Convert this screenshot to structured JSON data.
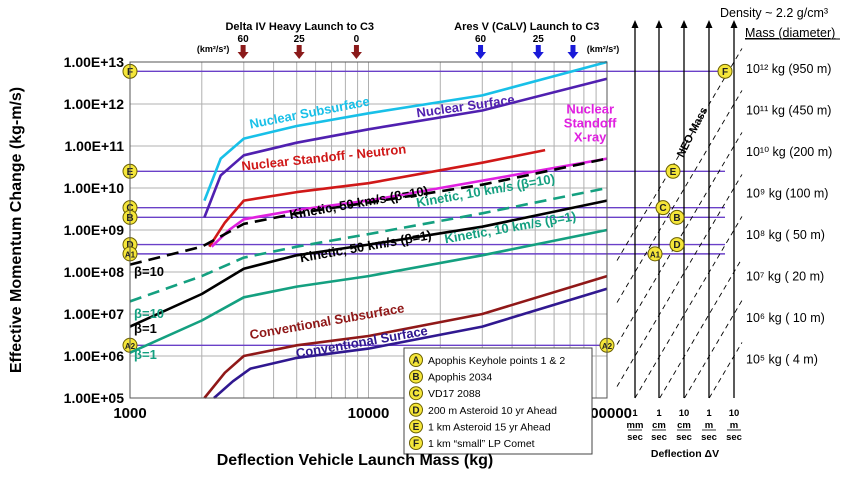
{
  "chart_data": {
    "type": "line",
    "x_scale": "log",
    "y_scale": "log",
    "xlim": [
      1000,
      100000
    ],
    "ylim": [
      100000,
      10000000000000
    ],
    "xlabel": "Deflection Vehicle Launch Mass (kg)",
    "ylabel": "Effective Momentum Change (kg-m/s)",
    "x_ticks": [
      {
        "value": 1000,
        "label": "1000"
      },
      {
        "value": 10000,
        "label": "10000"
      },
      {
        "value": 100000,
        "label": "100000"
      }
    ],
    "y_ticks": [
      {
        "value": 10000000000000,
        "label": "1.00E+13"
      },
      {
        "value": 1000000000000,
        "label": "1.00E+12"
      },
      {
        "value": 100000000000,
        "label": "1.00E+11"
      },
      {
        "value": 10000000000,
        "label": "1.00E+10"
      },
      {
        "value": 1000000000,
        "label": "1.00E+09"
      },
      {
        "value": 100000000,
        "label": "1.00E+08"
      },
      {
        "value": 10000000,
        "label": "1.00E+07"
      },
      {
        "value": 1000000,
        "label": "1.00E+06"
      },
      {
        "value": 100000,
        "label": "1.00E+05"
      }
    ],
    "grid": true,
    "series": [
      {
        "name": "Nuclear Subsurface",
        "color": "#18c0e8",
        "style": "solid",
        "x": [
          2050,
          2400,
          3000,
          5000,
          10000,
          30000,
          100000
        ],
        "y": [
          5000000000.0,
          50000000000.0,
          150000000000.0,
          300000000000.0,
          600000000000.0,
          1600000000000.0,
          10000000000000.0
        ]
      },
      {
        "name": "Nuclear Surface",
        "color": "#5020b0",
        "style": "solid",
        "x": [
          2050,
          2400,
          3000,
          5000,
          10000,
          30000,
          100000
        ],
        "y": [
          2000000000.0,
          20000000000.0,
          60000000000.0,
          120000000000.0,
          250000000000.0,
          700000000000.0,
          4000000000000.0
        ]
      },
      {
        "name": "Nuclear Standoff - Neutron",
        "color": "#d01818",
        "style": "solid",
        "x": [
          2150,
          2500,
          3000,
          5000,
          10000,
          30000,
          55000
        ],
        "y": [
          400000000.0,
          1500000000.0,
          5000000000.0,
          8000000000.0,
          13000000000.0,
          40000000000.0,
          80000000000.0
        ]
      },
      {
        "name": "Nuclear Standoff X-ray",
        "color": "#e020e0",
        "style": "solid",
        "x": [
          2200,
          2600,
          3000,
          5000,
          10000,
          30000,
          100000
        ],
        "y": [
          400000000.0,
          1000000000.0,
          1800000000.0,
          3000000000.0,
          5000000000.0,
          15000000000.0,
          50000000000.0
        ]
      },
      {
        "name": "Kinetic, 50 km/s (β=10)",
        "color": "#000000",
        "style": "dashed",
        "x": [
          1000,
          2000,
          3000,
          5000,
          10000,
          30000,
          100000
        ],
        "y": [
          150000000.0,
          400000000.0,
          1400000000.0,
          2500000000.0,
          4500000000.0,
          12000000000.0,
          50000000000.0
        ]
      },
      {
        "name": "Kinetic, 10 km/s (β=10)",
        "color": "#14a080",
        "style": "dashed",
        "x": [
          1000,
          2000,
          3000,
          5000,
          10000,
          30000,
          100000
        ],
        "y": [
          20000000.0,
          80000000.0,
          220000000.0,
          400000000.0,
          800000000.0,
          2500000000.0,
          10000000000.0
        ]
      },
      {
        "name": "Kinetic, 50 km/s (β=1)",
        "color": "#000000",
        "style": "solid",
        "x": [
          1000,
          2000,
          3000,
          5000,
          10000,
          30000,
          100000
        ],
        "y": [
          5000000.0,
          30000000.0,
          120000000.0,
          250000000.0,
          450000000.0,
          1200000000.0,
          5000000000.0
        ]
      },
      {
        "name": "Kinetic, 10 km/s (β=1)",
        "color": "#14a080",
        "style": "solid",
        "x": [
          1000,
          2000,
          3000,
          5000,
          10000,
          30000,
          100000
        ],
        "y": [
          1200000.0,
          7000000.0,
          25000000.0,
          45000000.0,
          80000000.0,
          250000000.0,
          1000000000.0
        ]
      },
      {
        "name": "Conventional Subsurface",
        "color": "#901818",
        "style": "solid",
        "x": [
          2050,
          2500,
          3000,
          5000,
          10000,
          30000,
          100000
        ],
        "y": [
          100000.0,
          400000.0,
          1000000.0,
          1800000.0,
          3000000.0,
          10000000.0,
          80000000.0
        ]
      },
      {
        "name": "Conventional Surface",
        "color": "#301890",
        "style": "solid",
        "x": [
          2250,
          2700,
          3200,
          5000,
          10000,
          30000,
          100000
        ],
        "y": [
          100000.0,
          250000.0,
          500000.0,
          900000.0,
          1500000.0,
          5000000.0,
          40000000.0
        ]
      }
    ],
    "annotations": [
      {
        "text": "Nuclear Subsurface",
        "color": "#18c0e8",
        "x": 3200,
        "y": 260000000000.0,
        "rotate": -11
      },
      {
        "text": "Nuclear Surface",
        "color": "#5020b0",
        "x": 16000,
        "y": 480000000000.0,
        "rotate": -8
      },
      {
        "text": "Nuclear Standoff - Neutron",
        "color": "#d01818",
        "x": 2950,
        "y": 26000000000.0,
        "rotate": -6
      },
      {
        "text": "Kinetic, 50 km/s (β=10)",
        "color": "#000000",
        "x": 4700,
        "y": 1800000000.0,
        "rotate": -10
      },
      {
        "text": "Kinetic, 10 km/s (β=10)",
        "color": "#14a080",
        "x": 16000,
        "y": 3500000000.0,
        "rotate": -10
      },
      {
        "text": "Kinetic, 50 km/s (β=1)",
        "color": "#000000",
        "x": 5200,
        "y": 170000000.0,
        "rotate": -10
      },
      {
        "text": "Kinetic, 10 km/s (β=1)",
        "color": "#14a080",
        "x": 21000,
        "y": 480000000.0,
        "rotate": -10
      },
      {
        "text": "Conventional Subsurface",
        "color": "#901818",
        "x": 3200,
        "y": 2500000.0,
        "rotate": -10
      },
      {
        "text": "Conventional Surface",
        "color": "#301890",
        "x": 5000,
        "y": 900000.0,
        "rotate": -10
      },
      {
        "text": "β=10",
        "color": "#000000",
        "x": 1040,
        "y": 80000000.0,
        "rotate": 0
      },
      {
        "text": "β=10",
        "color": "#14a080",
        "x": 1040,
        "y": 8000000.0,
        "rotate": 0
      },
      {
        "text": "β=1",
        "color": "#000000",
        "x": 1040,
        "y": 3500000.0,
        "rotate": 0
      },
      {
        "text": "β=1",
        "color": "#14a080",
        "x": 1040,
        "y": 850000.0,
        "rotate": 0
      }
    ],
    "xray_label": {
      "lines": [
        "Nuclear",
        "Standoff",
        "X-ray"
      ],
      "color": "#e020e0",
      "x": 85000,
      "y": 600000000000.0
    },
    "horizontal_lines": [
      {
        "label": "F",
        "y": 6000000000000.0,
        "x_right": 100000
      },
      {
        "label": "E",
        "y": 25000000000.0,
        "x_right": 100000
      },
      {
        "label": "C",
        "y": 3400000000.0,
        "x_right": 100000
      },
      {
        "label": "B",
        "y": 2000000000.0,
        "x_right": 100000
      },
      {
        "label": "D",
        "y": 450000000.0,
        "x_right": 100000
      },
      {
        "label": "A1",
        "y": 270000000.0,
        "x_right": 100000
      },
      {
        "label": "A2",
        "y": 1800000.0,
        "x_right": 100000
      }
    ],
    "launch_groups": [
      {
        "title": "Delta IV Heavy Launch to C3",
        "marker_color": "#8b1a1a",
        "markers": [
          {
            "label": "60",
            "x": 2980
          },
          {
            "label": "25",
            "x": 5120
          },
          {
            "label": "0",
            "x": 8900
          }
        ]
      },
      {
        "title": "Ares V (CaLV) Launch to C3",
        "marker_color": "#1a1ad8",
        "markers": [
          {
            "label": "60",
            "x": 29500
          },
          {
            "label": "25",
            "x": 51500
          },
          {
            "label": "0",
            "x": 72000
          }
        ]
      }
    ],
    "c3_unit_label": "(km²/s²)",
    "legend": [
      {
        "key": "A",
        "text": "Apophis Keyhole points 1 & 2"
      },
      {
        "key": "B",
        "text": "Apophis 2034"
      },
      {
        "key": "C",
        "text": "VD17 2088"
      },
      {
        "key": "D",
        "text": "200 m Asteroid 10 yr Ahead"
      },
      {
        "key": "E",
        "text": "1 km Asteroid 15 yr Ahead"
      },
      {
        "key": "F",
        "text": "1 km “small” LP Comet"
      }
    ],
    "neo_panel": {
      "density_label": "Density ~ 2.2 g/cm³",
      "mass_header": "Mass (diameter)",
      "neo_mass_label": "NEO Mass",
      "masses": [
        {
          "label": "10¹² kg (950 m)",
          "log_m": 12
        },
        {
          "label": "10¹¹ kg (450 m)",
          "log_m": 11
        },
        {
          "label": "10¹⁰ kg (200 m)",
          "log_m": 10
        },
        {
          "label": "10⁹ kg (100 m)",
          "log_m": 9
        },
        {
          "label": "10⁸ kg (  50 m)",
          "log_m": 8
        },
        {
          "label": "10⁷ kg (  20 m)",
          "log_m": 7
        },
        {
          "label": "10⁶ kg (  10 m)",
          "log_m": 6
        },
        {
          "label": "10⁵ kg (   4 m)",
          "log_m": 5
        }
      ],
      "deflection_dv": [
        {
          "value": "1",
          "unit": "mm",
          "per": "sec",
          "log_dv": -3
        },
        {
          "value": "1",
          "unit": "cm",
          "per": "sec",
          "log_dv": -2
        },
        {
          "value": "10",
          "unit": "cm",
          "per": "sec",
          "log_dv": -1
        },
        {
          "value": "1",
          "unit": "m",
          "per": "sec",
          "log_dv": 0
        },
        {
          "value": "10",
          "unit": "m",
          "per": "sec",
          "log_dv": 1
        }
      ],
      "dv_axis_label": "Deflection ΔV",
      "markers": [
        {
          "label": "F",
          "log_m": 12
        },
        {
          "label": "E",
          "log_m": 10.4
        },
        {
          "label": "C",
          "log_m": 8.5
        },
        {
          "label": "B",
          "log_m": 8.3
        },
        {
          "label": "D",
          "log_m": 8.0
        },
        {
          "label": "A1",
          "log_m": 7.4
        }
      ]
    }
  }
}
